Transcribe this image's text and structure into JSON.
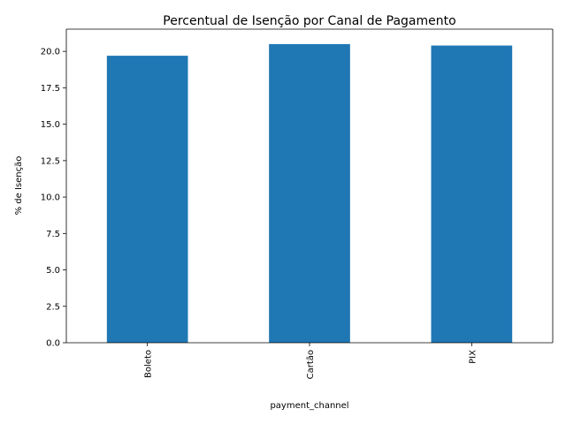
{
  "chart_data": {
    "type": "bar",
    "title": "Percentual de Isenção por Canal de Pagamento",
    "xlabel": "payment_channel",
    "ylabel": "% de Isenção",
    "categories": [
      "Boleto",
      "Cartão",
      "PIX"
    ],
    "values": [
      19.7,
      20.5,
      20.4
    ],
    "ylim": [
      0,
      21.525
    ],
    "yticks": [
      0.0,
      2.5,
      5.0,
      7.5,
      10.0,
      12.5,
      15.0,
      17.5,
      20.0
    ],
    "ytick_labels": [
      "0.0",
      "2.5",
      "5.0",
      "7.5",
      "10.0",
      "12.5",
      "15.0",
      "17.5",
      "20.0"
    ],
    "bar_color": "#1f77b4",
    "grid": false,
    "legend": "none"
  }
}
